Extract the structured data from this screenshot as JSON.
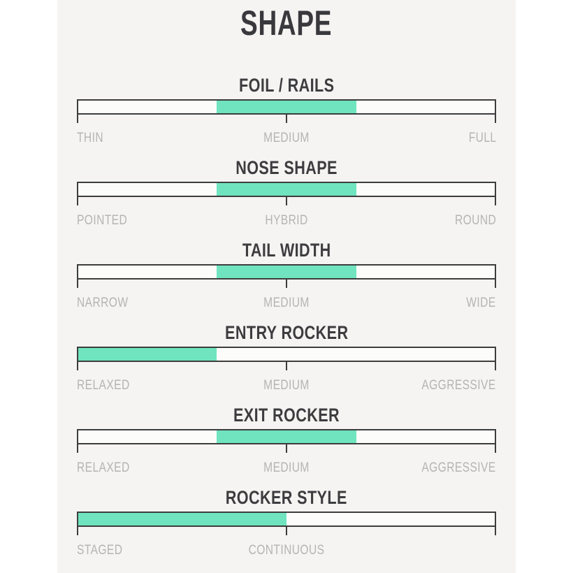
{
  "title": "SHAPE",
  "accent_color": "#6fe4bf",
  "panel_color": "#f5f4f2",
  "track_border_color": "#3d3d3d",
  "label_color": "#b5b4b2",
  "sections": [
    {
      "title": "FOIL / RAILS",
      "labels": [
        "THIN",
        "MEDIUM",
        "FULL"
      ],
      "fill_start_pct": 33.3,
      "fill_end_pct": 66.7
    },
    {
      "title": "NOSE SHAPE",
      "labels": [
        "POINTED",
        "HYBRID",
        "ROUND"
      ],
      "fill_start_pct": 33.3,
      "fill_end_pct": 66.7
    },
    {
      "title": "TAIL WIDTH",
      "labels": [
        "NARROW",
        "MEDIUM",
        "WIDE"
      ],
      "fill_start_pct": 33.3,
      "fill_end_pct": 66.7
    },
    {
      "title": "ENTRY ROCKER",
      "labels": [
        "RELAXED",
        "MEDIUM",
        "AGGRESSIVE"
      ],
      "fill_start_pct": 0,
      "fill_end_pct": 33.3
    },
    {
      "title": "EXIT ROCKER",
      "labels": [
        "RELAXED",
        "MEDIUM",
        "AGGRESSIVE"
      ],
      "fill_start_pct": 33.3,
      "fill_end_pct": 66.7
    },
    {
      "title": "ROCKER STYLE",
      "labels": [
        "STAGED",
        "CONTINUOUS"
      ],
      "fill_start_pct": 0,
      "fill_end_pct": 50
    }
  ],
  "chart_data": {
    "type": "bar",
    "title": "SHAPE",
    "orientation": "horizontal-range-sliders",
    "axis_range_pct": [
      0,
      100
    ],
    "series": [
      {
        "name": "FOIL / RAILS",
        "scale_labels": [
          "THIN",
          "MEDIUM",
          "FULL"
        ],
        "range_pct": [
          33.3,
          66.7
        ],
        "indicated_value": "MEDIUM"
      },
      {
        "name": "NOSE SHAPE",
        "scale_labels": [
          "POINTED",
          "HYBRID",
          "ROUND"
        ],
        "range_pct": [
          33.3,
          66.7
        ],
        "indicated_value": "HYBRID"
      },
      {
        "name": "TAIL WIDTH",
        "scale_labels": [
          "NARROW",
          "MEDIUM",
          "WIDE"
        ],
        "range_pct": [
          33.3,
          66.7
        ],
        "indicated_value": "MEDIUM"
      },
      {
        "name": "ENTRY ROCKER",
        "scale_labels": [
          "RELAXED",
          "MEDIUM",
          "AGGRESSIVE"
        ],
        "range_pct": [
          0,
          33.3
        ],
        "indicated_value": "RELAXED"
      },
      {
        "name": "EXIT ROCKER",
        "scale_labels": [
          "RELAXED",
          "MEDIUM",
          "AGGRESSIVE"
        ],
        "range_pct": [
          33.3,
          66.7
        ],
        "indicated_value": "MEDIUM"
      },
      {
        "name": "ROCKER STYLE",
        "scale_labels": [
          "STAGED",
          "CONTINUOUS"
        ],
        "range_pct": [
          0,
          50
        ],
        "indicated_value": "STAGED-LEANING"
      }
    ]
  }
}
